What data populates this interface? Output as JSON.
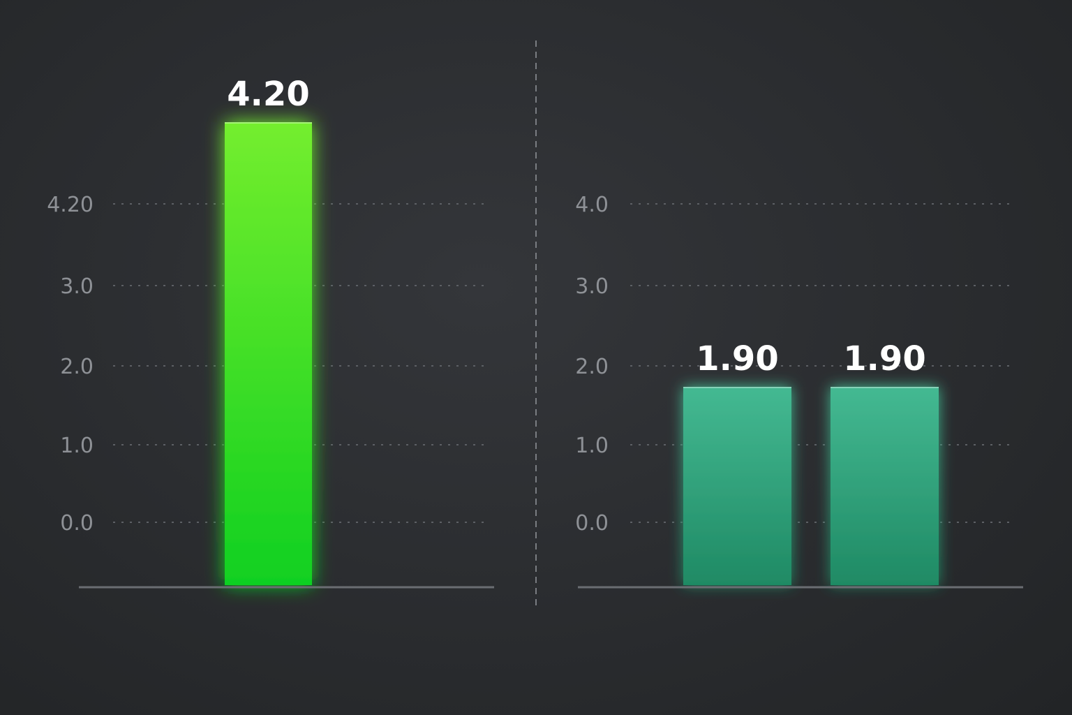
{
  "chart_data": [
    {
      "type": "bar",
      "categories": [
        ""
      ],
      "values": [
        4.2
      ],
      "value_labels": [
        "4.20"
      ],
      "y_ticks": [
        "0.0",
        "1.0",
        "2.0",
        "3.0",
        "4.20"
      ],
      "grid": true,
      "color": "#5fe62e"
    },
    {
      "type": "bar",
      "categories": [
        "",
        ""
      ],
      "values": [
        1.9,
        1.9
      ],
      "value_labels": [
        "1.90",
        "1.90"
      ],
      "y_ticks": [
        "0.0",
        "1.0",
        "2.0",
        "3.0",
        "4.0"
      ],
      "grid": true,
      "color": "#33a884"
    }
  ]
}
